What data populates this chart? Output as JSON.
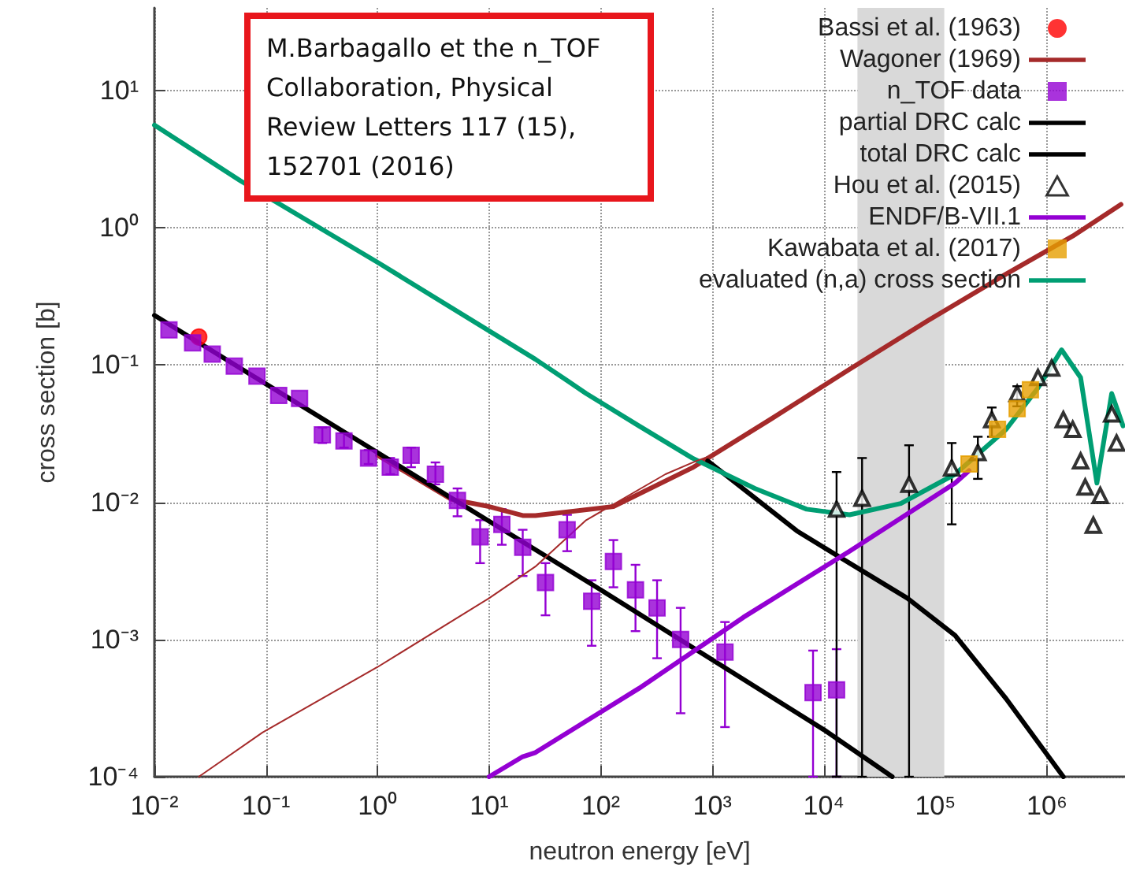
{
  "chart_data": {
    "type": "line",
    "xlabel": "neutron energy [eV]",
    "ylabel": "cross section [b]",
    "log": "xy",
    "grid": true,
    "legend": "top right",
    "xlim": [
      0.01,
      5000000
    ],
    "ylim": [
      0.0001,
      40
    ],
    "xticks": [
      {
        "value": 0.01,
        "label": "10⁻²"
      },
      {
        "value": 0.1,
        "label": "10⁻¹"
      },
      {
        "value": 1,
        "label": "10⁰"
      },
      {
        "value": 10,
        "label": "10¹"
      },
      {
        "value": 100,
        "label": "10²"
      },
      {
        "value": 1000,
        "label": "10³"
      },
      {
        "value": 10000,
        "label": "10⁴"
      },
      {
        "value": 100000,
        "label": "10⁵"
      },
      {
        "value": 1000000,
        "label": "10⁶"
      }
    ],
    "yticks": [
      {
        "value": 0.0001,
        "label": "10⁻⁴"
      },
      {
        "value": 0.001,
        "label": "10⁻³"
      },
      {
        "value": 0.01,
        "label": "10⁻²"
      },
      {
        "value": 0.1,
        "label": "10⁻¹"
      },
      {
        "value": 1,
        "label": "10⁰"
      },
      {
        "value": 10,
        "label": "10¹"
      }
    ],
    "bands": [
      {
        "axis": "x",
        "from": 20000,
        "to": 120000,
        "color": "#d9d9d9"
      }
    ],
    "annotations": [
      "M.Barbagallo et the n_TOF Collaboration, Physical Review Letters 117 (15), 152701 (2016)"
    ],
    "series": [
      {
        "name": "Bassi et al. (1963)",
        "type": "scatter",
        "marker": "circle",
        "color": "#ff0000",
        "x": [
          0.025
        ],
        "values": [
          0.16
        ]
      },
      {
        "name": "Wagoner (1969)",
        "color": "#a52a2a",
        "x": [
          1,
          4.6,
          10,
          20,
          26,
          130,
          660,
          3300,
          17000,
          85000,
          430000,
          1700000,
          4600000
        ],
        "values": [
          0.022,
          0.0105,
          0.0093,
          0.008,
          0.008,
          0.0093,
          0.0178,
          0.04,
          0.093,
          0.21,
          0.46,
          0.87,
          1.48
        ]
      },
      {
        "name": "n_TOF data",
        "type": "scatter",
        "marker": "square",
        "color": "#9400d3",
        "x": [
          0.0135,
          0.022,
          0.033,
          0.052,
          0.083,
          0.13,
          0.2,
          0.32,
          0.5,
          0.83,
          1.3,
          2,
          3.3,
          5.2,
          8.3,
          13,
          20,
          32,
          50,
          83,
          130,
          205,
          320,
          520,
          1300,
          8000,
          13000
        ],
        "values": [
          0.18,
          0.145,
          0.12,
          0.098,
          0.083,
          0.06,
          0.057,
          0.031,
          0.028,
          0.021,
          0.018,
          0.022,
          0.016,
          0.0103,
          0.0056,
          0.0069,
          0.0047,
          0.0026,
          0.0063,
          0.0019,
          0.0037,
          0.0023,
          0.0017,
          0.001,
          0.00081,
          0.00041,
          0.00043
        ],
        "errors": [
          null,
          null,
          null,
          null,
          null,
          null,
          null,
          [
            0.027,
            0.035
          ],
          [
            0.025,
            0.032
          ],
          [
            0.019,
            0.024
          ],
          [
            0.016,
            0.021
          ],
          [
            0.018,
            0.025
          ],
          [
            0.0135,
            0.0195
          ],
          [
            0.0079,
            0.0126
          ],
          [
            0.0036,
            0.0074
          ],
          [
            0.0049,
            0.0089
          ],
          [
            0.0029,
            0.0063
          ],
          [
            0.0015,
            0.0036
          ],
          [
            0.0044,
            0.0081
          ],
          [
            0.0009,
            0.0027
          ],
          [
            0.0024,
            0.0053
          ],
          [
            0.00115,
            0.0035
          ],
          [
            0.00073,
            0.0027
          ],
          [
            0.00029,
            0.0017
          ],
          [
            0.00023,
            0.00134
          ],
          [
            0.0001,
            0.00083
          ],
          [
            0.0001,
            0.00085
          ]
        ]
      },
      {
        "name": "partial DRC calc",
        "color": "#000000",
        "x": [
          0.01,
          1,
          100,
          10000,
          41000
        ],
        "values": [
          0.23,
          0.023,
          0.0023,
          0.00022,
          0.0001
        ]
      },
      {
        "name": "total DRC calc",
        "color": "#000000",
        "x": [
          910,
          5700,
          17000,
          56000,
          150000,
          430000,
          1400000
        ],
        "values": [
          0.02,
          0.0062,
          0.0036,
          0.002,
          0.00107,
          0.00037,
          0.0001
        ]
      },
      {
        "name": "Hou et al. (2015)",
        "type": "scatter",
        "marker": "triangle",
        "color": "#000000",
        "x": [
          13000,
          22000,
          58000,
          140000,
          240000,
          320000,
          540000,
          830000,
          1100000,
          1400000,
          1700000,
          2000000,
          2200000,
          2600000,
          3000000,
          3800000,
          4200000
        ],
        "values": [
          0.0089,
          0.0107,
          0.0135,
          0.0178,
          0.023,
          0.04,
          0.062,
          0.081,
          0.095,
          0.04,
          0.034,
          0.02,
          0.0129,
          0.0068,
          0.0112,
          0.044,
          0.027
        ],
        "errors": [
          [
            0.0001,
            0.0166
          ],
          [
            0.0001,
            0.021
          ],
          [
            0.0001,
            0.026
          ],
          [
            0.0069,
            0.027
          ],
          [
            0.0148,
            0.03
          ],
          [
            0.03,
            0.049
          ],
          [
            0.05,
            0.07
          ],
          null,
          null,
          null,
          null,
          null,
          null,
          null,
          null,
          null,
          null
        ]
      },
      {
        "name": "ENDF/B-VII.1",
        "color": "#9400d3",
        "x": [
          10,
          20,
          26,
          220,
          1900,
          17000,
          150000,
          200000
        ],
        "values": [
          0.0001,
          0.00014,
          0.00015,
          0.00044,
          0.00145,
          0.0044,
          0.0138,
          0.017
        ]
      },
      {
        "name": "Kawabata et al. (2017)",
        "type": "scatter",
        "marker": "square",
        "color": "#e69f00",
        "x": [
          200000,
          360000,
          540000,
          710000
        ],
        "values": [
          0.019,
          0.034,
          0.048,
          0.066
        ]
      },
      {
        "name": "evaluated (n,a) cross section",
        "color": "#009e73",
        "x": [
          0.01,
          0.059,
          1,
          26,
          49,
          74,
          220,
          660,
          2400,
          7000,
          17000,
          49000,
          150000,
          430000,
          830000,
          1350000,
          2000000,
          2800000,
          3800000,
          4800000
        ],
        "values": [
          5.6,
          2.2,
          0.56,
          0.11,
          0.078,
          0.062,
          0.036,
          0.021,
          0.0126,
          0.0089,
          0.0081,
          0.0098,
          0.016,
          0.034,
          0.068,
          0.129,
          0.081,
          0.0138,
          0.062,
          0.036
        ]
      },
      {
        "color": "#a52a2a",
        "x": [
          0.025,
          0.093,
          1,
          10,
          26,
          74,
          380,
          720,
          1000
        ],
        "values": [
          0.0001,
          0.00021,
          0.00063,
          0.002,
          0.0034,
          0.0074,
          0.016,
          0.02,
          0.022
        ]
      }
    ]
  }
}
